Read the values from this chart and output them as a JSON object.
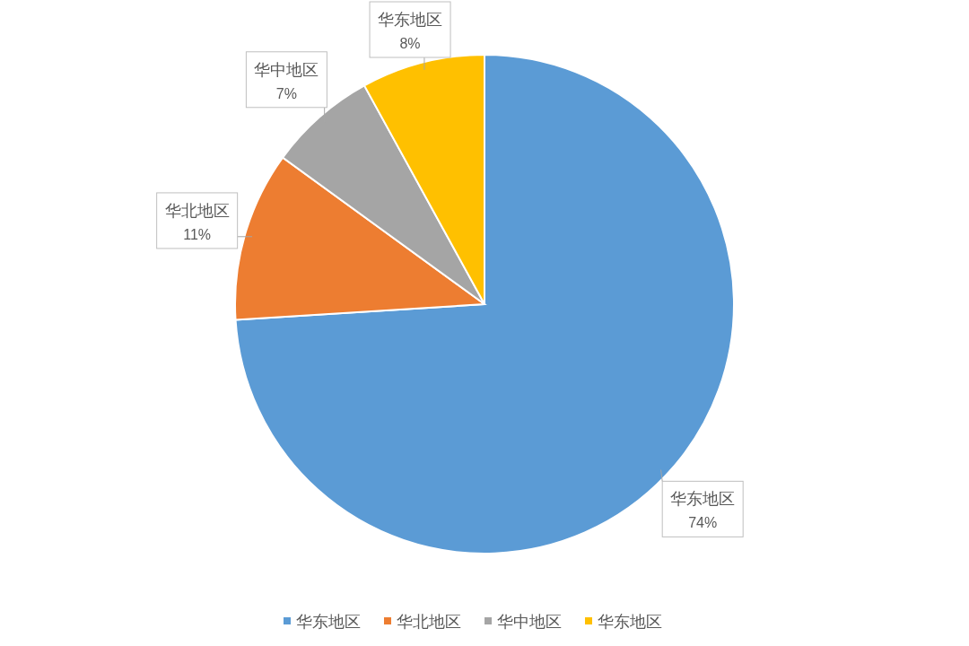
{
  "chart_data": {
    "type": "pie",
    "categories": [
      "华东地区",
      "华北地区",
      "华中地区",
      "华东地区"
    ],
    "values": [
      74,
      11,
      7,
      8
    ],
    "colors": [
      "#5b9bd5",
      "#ed7d31",
      "#a5a5a5",
      "#ffc000"
    ],
    "value_labels": [
      "74%",
      "11%",
      "7%",
      "8%"
    ],
    "legend": "bottom"
  }
}
